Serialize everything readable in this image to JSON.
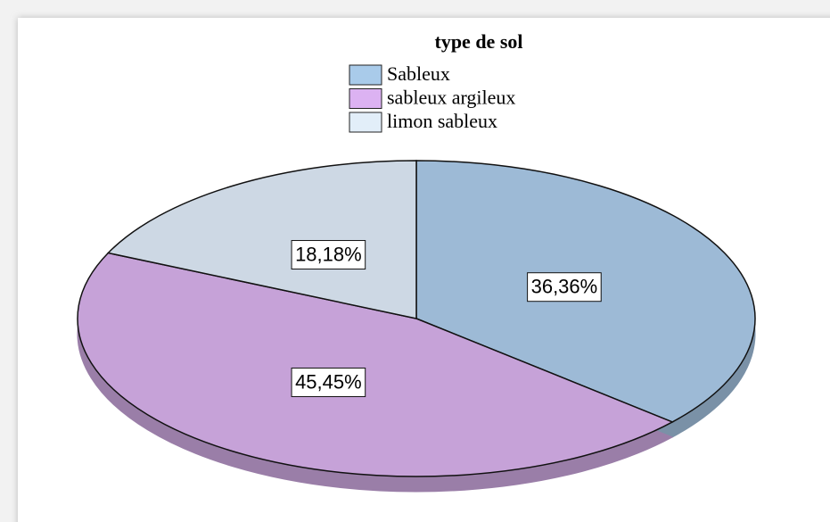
{
  "chart_data": {
    "type": "pie",
    "legend_title": "type de sol",
    "categories": [
      "Sableux",
      "sableux argileux",
      "limon sableux"
    ],
    "values": [
      36.36,
      45.45,
      18.18
    ],
    "value_labels": [
      "36,36%",
      "45,45%",
      "18,18%"
    ],
    "colors": [
      "#9dbad6",
      "#c6a2d8",
      "#cdd8e4"
    ],
    "legend_colors": [
      "#a9cbea",
      "#dcb2f2",
      "#e2eef9"
    ],
    "legend": "top"
  }
}
